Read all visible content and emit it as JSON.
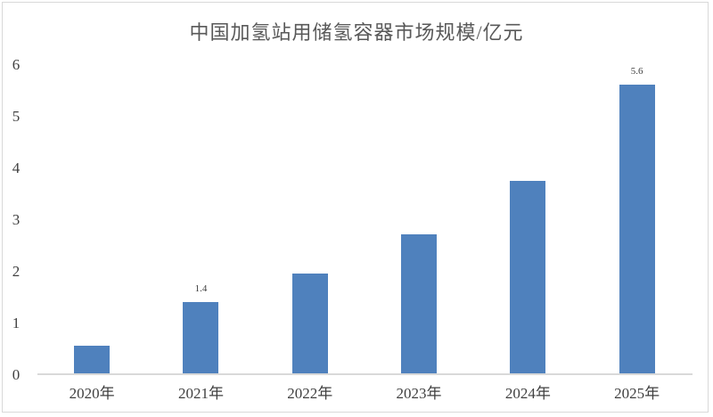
{
  "chart_data": {
    "type": "bar",
    "title": "中国加氢站用储氢容器市场规模/亿元",
    "categories": [
      "2020年",
      "2021年",
      "2022年",
      "2023年",
      "2024年",
      "2025年"
    ],
    "values": [
      0.55,
      1.4,
      1.95,
      2.7,
      3.75,
      5.6
    ],
    "data_labels": [
      "",
      "1.4",
      "",
      "",
      "",
      "5.6"
    ],
    "xlabel": "",
    "ylabel": "",
    "ylim": [
      0,
      6
    ],
    "yticks": [
      "0",
      "1",
      "2",
      "3",
      "4",
      "5",
      "6"
    ],
    "grid": false,
    "legend": false,
    "bar_color": "#4f81bd",
    "axis_line_color": "#d9d9d9",
    "frame_border_color": "#d9d9d9",
    "text_color": "#404040",
    "title_color": "#595959"
  }
}
